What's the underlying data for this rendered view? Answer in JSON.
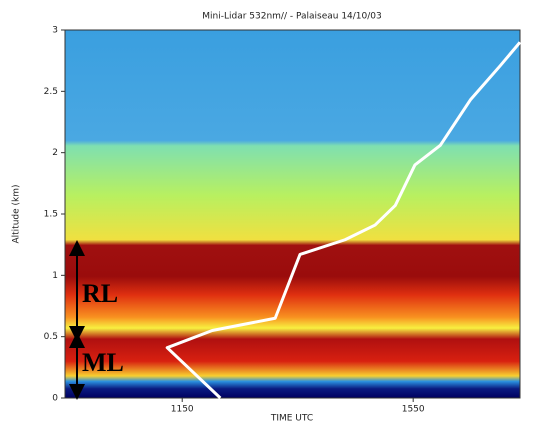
{
  "chart_data": {
    "type": "line",
    "title": "Mini-Lidar 532nm// - Palaiseau 14/10/03",
    "x_label": "TIME UTC",
    "y_label": "Altitude (km)",
    "xlim": [
      947,
      1735
    ],
    "xticks": [
      1150,
      1550
    ],
    "ylim": [
      0,
      3
    ],
    "yticks": [
      0,
      0.5,
      1,
      1.5,
      2,
      2.5,
      3
    ],
    "annotations": [
      "RL",
      "ML"
    ],
    "series": [
      {
        "color": "#ffffff",
        "x": [
          1216,
          1124,
          1202,
          1311,
          1354,
          1432,
          1484,
          1519,
          1553,
          1597,
          1649,
          1701,
          1735
        ],
        "values": [
          0,
          0.41,
          0.55,
          0.65,
          1.17,
          1.29,
          1.41,
          1.57,
          1.9,
          2.06,
          2.43,
          2.71,
          2.9
        ]
      }
    ]
  }
}
